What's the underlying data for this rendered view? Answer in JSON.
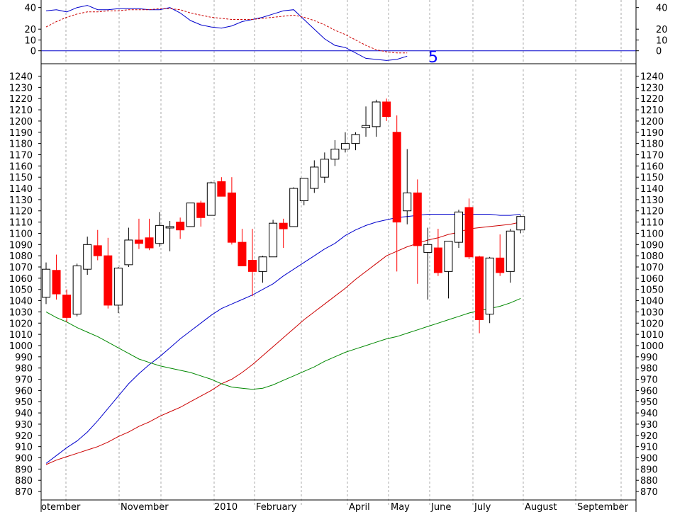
{
  "chart_data": [
    {
      "type": "line",
      "panel": "indicator",
      "label": "5",
      "ylim": [
        -12,
        47
      ],
      "y_ticks": [
        40,
        20,
        10,
        0
      ],
      "zero_line": 0,
      "colors": {
        "main": "#0000cc",
        "signal": "#cc0000",
        "zero": "#0000cc"
      },
      "series": [
        {
          "key": "main",
          "values": [
            37,
            38,
            36,
            40,
            42,
            38,
            38,
            39,
            39,
            39,
            38,
            38,
            40,
            35,
            28,
            24,
            22,
            21,
            23,
            27,
            29,
            31,
            34,
            37,
            38,
            29,
            20,
            11,
            5,
            3,
            -2,
            -7,
            -8,
            -9,
            -8,
            -5
          ]
        },
        {
          "key": "signal",
          "values": [
            22,
            27,
            31,
            34,
            36,
            36,
            37,
            37,
            38,
            38,
            38,
            39,
            39,
            38,
            35,
            33,
            31,
            30,
            29,
            29,
            29,
            30,
            31,
            32,
            33,
            31,
            28,
            24,
            19,
            15,
            10,
            5,
            1,
            -1,
            -2,
            -2
          ]
        }
      ]
    },
    {
      "type": "candlestick",
      "panel": "price",
      "ylim": [
        865,
        1246
      ],
      "y_ticks": [
        870,
        880,
        890,
        900,
        910,
        920,
        930,
        940,
        950,
        960,
        970,
        980,
        990,
        1000,
        1010,
        1020,
        1030,
        1040,
        1050,
        1060,
        1070,
        1080,
        1090,
        1100,
        1110,
        1120,
        1130,
        1140,
        1150,
        1160,
        1170,
        1180,
        1190,
        1200,
        1210,
        1220,
        1230,
        1240
      ],
      "x_labels": [
        "otember",
        "November",
        "2010",
        "February",
        "April",
        "May",
        "June",
        "July",
        "August",
        "September"
      ],
      "colors": {
        "up": "#ffffff",
        "down": "#ff0000",
        "outline": "#000000",
        "ma_short": "#cc0000",
        "ma_mid": "#0000cc",
        "ma_long": "#008800",
        "grid": "#aaaaaa"
      },
      "candles": [
        {
          "o": 1043,
          "h": 1074,
          "l": 1037,
          "c": 1068
        },
        {
          "o": 1067,
          "h": 1081,
          "l": 1041,
          "c": 1046
        },
        {
          "o": 1045,
          "h": 1050,
          "l": 1021,
          "c": 1025
        },
        {
          "o": 1028,
          "h": 1073,
          "l": 1026,
          "c": 1071
        },
        {
          "o": 1068,
          "h": 1097,
          "l": 1063,
          "c": 1090
        },
        {
          "o": 1089,
          "h": 1103,
          "l": 1076,
          "c": 1080
        },
        {
          "o": 1080,
          "h": 1096,
          "l": 1033,
          "c": 1036
        },
        {
          "o": 1036,
          "h": 1070,
          "l": 1029,
          "c": 1069
        },
        {
          "o": 1072,
          "h": 1105,
          "l": 1070,
          "c": 1094
        },
        {
          "o": 1094,
          "h": 1113,
          "l": 1086,
          "c": 1091
        },
        {
          "o": 1096,
          "h": 1113,
          "l": 1085,
          "c": 1087
        },
        {
          "o": 1091,
          "h": 1119,
          "l": 1088,
          "c": 1107
        },
        {
          "o": 1106,
          "h": 1111,
          "l": 1084,
          "c": 1106
        },
        {
          "o": 1110,
          "h": 1114,
          "l": 1095,
          "c": 1103
        },
        {
          "o": 1106,
          "h": 1127,
          "l": 1106,
          "c": 1127
        },
        {
          "o": 1127,
          "h": 1129,
          "l": 1106,
          "c": 1114
        },
        {
          "o": 1116,
          "h": 1146,
          "l": 1116,
          "c": 1145
        },
        {
          "o": 1146,
          "h": 1150,
          "l": 1133,
          "c": 1133
        },
        {
          "o": 1136,
          "h": 1150,
          "l": 1090,
          "c": 1092
        },
        {
          "o": 1092,
          "h": 1104,
          "l": 1073,
          "c": 1071
        },
        {
          "o": 1076,
          "h": 1104,
          "l": 1044,
          "c": 1066
        },
        {
          "o": 1066,
          "h": 1080,
          "l": 1056,
          "c": 1079
        },
        {
          "o": 1079,
          "h": 1112,
          "l": 1079,
          "c": 1109
        },
        {
          "o": 1109,
          "h": 1113,
          "l": 1087,
          "c": 1104
        },
        {
          "o": 1106,
          "h": 1141,
          "l": 1106,
          "c": 1140
        },
        {
          "o": 1129,
          "h": 1149,
          "l": 1125,
          "c": 1149
        },
        {
          "o": 1140,
          "h": 1165,
          "l": 1136,
          "c": 1159
        },
        {
          "o": 1150,
          "h": 1172,
          "l": 1145,
          "c": 1166
        },
        {
          "o": 1166,
          "h": 1183,
          "l": 1160,
          "c": 1175
        },
        {
          "o": 1175,
          "h": 1190,
          "l": 1172,
          "c": 1180
        },
        {
          "o": 1180,
          "h": 1190,
          "l": 1174,
          "c": 1188
        },
        {
          "o": 1194,
          "h": 1213,
          "l": 1186,
          "c": 1196
        },
        {
          "o": 1195,
          "h": 1219,
          "l": 1186,
          "c": 1217
        },
        {
          "o": 1217,
          "h": 1220,
          "l": 1200,
          "c": 1204
        },
        {
          "o": 1190,
          "h": 1205,
          "l": 1066,
          "c": 1110
        },
        {
          "o": 1120,
          "h": 1175,
          "l": 1108,
          "c": 1136
        },
        {
          "o": 1136,
          "h": 1148,
          "l": 1055,
          "c": 1089
        },
        {
          "o": 1083,
          "h": 1105,
          "l": 1041,
          "c": 1090
        },
        {
          "o": 1087,
          "h": 1104,
          "l": 1062,
          "c": 1065
        },
        {
          "o": 1066,
          "h": 1092,
          "l": 1042,
          "c": 1093
        },
        {
          "o": 1092,
          "h": 1121,
          "l": 1087,
          "c": 1119
        },
        {
          "o": 1123,
          "h": 1131,
          "l": 1077,
          "c": 1079
        },
        {
          "o": 1079,
          "h": 1080,
          "l": 1011,
          "c": 1023
        },
        {
          "o": 1028,
          "h": 1079,
          "l": 1020,
          "c": 1078
        },
        {
          "o": 1078,
          "h": 1099,
          "l": 1062,
          "c": 1065
        },
        {
          "o": 1066,
          "h": 1104,
          "l": 1056,
          "c": 1102
        },
        {
          "o": 1103,
          "h": 1116,
          "l": 1100,
          "c": 1115
        }
      ],
      "series": [
        {
          "key": "ma_mid",
          "values": [
            895,
            902,
            909,
            915,
            923,
            933,
            944,
            955,
            966,
            975,
            983,
            990,
            998,
            1006,
            1013,
            1020,
            1027,
            1033,
            1037,
            1041,
            1045,
            1050,
            1055,
            1062,
            1068,
            1074,
            1080,
            1086,
            1091,
            1098,
            1103,
            1107,
            1110,
            1112,
            1114,
            1115,
            1116,
            1117,
            1117,
            1117,
            1117,
            1117,
            1117,
            1117,
            1116,
            1116,
            1117
          ]
        },
        {
          "key": "ma_short",
          "values": [
            894,
            898,
            901,
            904,
            907,
            910,
            914,
            919,
            923,
            928,
            932,
            937,
            941,
            945,
            950,
            955,
            960,
            966,
            970,
            976,
            983,
            991,
            999,
            1007,
            1015,
            1023,
            1030,
            1037,
            1044,
            1051,
            1059,
            1066,
            1073,
            1080,
            1084,
            1088,
            1091,
            1094,
            1096,
            1099,
            1101,
            1104,
            1105,
            1106,
            1107,
            1108,
            1110
          ]
        },
        {
          "key": "ma_long",
          "values": [
            1030,
            1025,
            1021,
            1016,
            1012,
            1008,
            1003,
            998,
            993,
            988,
            985,
            982,
            980,
            978,
            976,
            973,
            970,
            966,
            963,
            962,
            961,
            962,
            965,
            969,
            973,
            977,
            981,
            986,
            990,
            994,
            997,
            1000,
            1003,
            1006,
            1008,
            1011,
            1014,
            1017,
            1020,
            1023,
            1026,
            1029,
            1031,
            1033,
            1035,
            1038,
            1042
          ]
        }
      ]
    }
  ]
}
